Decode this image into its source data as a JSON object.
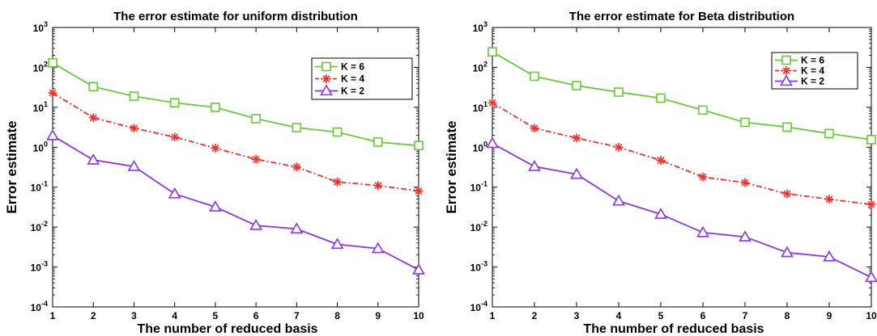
{
  "chart_data": [
    {
      "type": "line",
      "title": "The error estimate for uniform distribution",
      "xlabel": "The number of reduced basis",
      "ylabel": "Error estimate",
      "yscale": "log",
      "xlim": [
        1,
        10
      ],
      "ylim": [
        0.0001,
        1000
      ],
      "x": [
        1,
        2,
        3,
        4,
        5,
        6,
        7,
        8,
        9,
        10
      ],
      "x_ticks": [
        "1",
        "2",
        "3",
        "4",
        "5",
        "6",
        "7",
        "8",
        "9",
        "10"
      ],
      "y_ticks": [
        {
          "base": "10",
          "exp": "3",
          "value": 1000
        },
        {
          "base": "10",
          "exp": "2",
          "value": 100
        },
        {
          "base": "10",
          "exp": "1",
          "value": 10
        },
        {
          "base": "10",
          "exp": "0",
          "value": 1
        },
        {
          "base": "10",
          "exp": "-1",
          "value": 0.1
        },
        {
          "base": "10",
          "exp": "-2",
          "value": 0.01
        },
        {
          "base": "10",
          "exp": "-3",
          "value": 0.001
        },
        {
          "base": "10",
          "exp": "-4",
          "value": 0.0001
        }
      ],
      "grid": false,
      "legend_position": "top-right",
      "series": [
        {
          "name": "K = 6",
          "color": "#66cc33",
          "marker": "square",
          "dash": "solid",
          "values": [
            130,
            33,
            19,
            13,
            10,
            5.2,
            3.1,
            2.4,
            1.35,
            1.1
          ]
        },
        {
          "name": "K = 4",
          "color": "#ff2a2a",
          "marker": "asterisk",
          "dash": "dashdot",
          "values": [
            23,
            5.5,
            3.0,
            1.8,
            0.95,
            0.5,
            0.32,
            0.135,
            0.11,
            0.08
          ]
        },
        {
          "name": "K = 2",
          "color": "#8833ff",
          "marker": "triangle",
          "dash": "solid",
          "values": [
            1.95,
            0.48,
            0.33,
            0.068,
            0.032,
            0.011,
            0.009,
            0.0037,
            0.0029,
            0.00085
          ]
        }
      ]
    },
    {
      "type": "line",
      "title": "The error estimate for Beta distribution",
      "xlabel": "The number of reduced basis",
      "ylabel": "Error estimate",
      "yscale": "log",
      "xlim": [
        1,
        10
      ],
      "ylim": [
        0.0001,
        1000
      ],
      "x": [
        1,
        2,
        3,
        4,
        5,
        6,
        7,
        8,
        9,
        10
      ],
      "x_ticks": [
        "1",
        "2",
        "3",
        "4",
        "5",
        "6",
        "7",
        "8",
        "9",
        "10"
      ],
      "y_ticks": [
        {
          "base": "10",
          "exp": "3",
          "value": 1000
        },
        {
          "base": "10",
          "exp": "2",
          "value": 100
        },
        {
          "base": "10",
          "exp": "1",
          "value": 10
        },
        {
          "base": "10",
          "exp": "0",
          "value": 1
        },
        {
          "base": "10",
          "exp": "-1",
          "value": 0.1
        },
        {
          "base": "10",
          "exp": "-2",
          "value": 0.01
        },
        {
          "base": "10",
          "exp": "-3",
          "value": 0.001
        },
        {
          "base": "10",
          "exp": "-4",
          "value": 0.0001
        }
      ],
      "grid": false,
      "legend_position": "top-right",
      "series": [
        {
          "name": "K = 6",
          "color": "#66cc33",
          "marker": "square",
          "dash": "solid",
          "values": [
            245,
            60,
            35,
            24,
            17,
            8.5,
            4.2,
            3.2,
            2.2,
            1.55
          ]
        },
        {
          "name": "K = 4",
          "color": "#ff2a2a",
          "marker": "asterisk",
          "dash": "dashdot",
          "values": [
            13,
            3.0,
            1.7,
            1.0,
            0.47,
            0.18,
            0.13,
            0.068,
            0.05,
            0.037
          ]
        },
        {
          "name": "K = 2",
          "color": "#8833ff",
          "marker": "triangle",
          "dash": "solid",
          "values": [
            1.25,
            0.33,
            0.21,
            0.045,
            0.021,
            0.0073,
            0.0057,
            0.0023,
            0.0018,
            0.00055
          ]
        }
      ]
    }
  ]
}
